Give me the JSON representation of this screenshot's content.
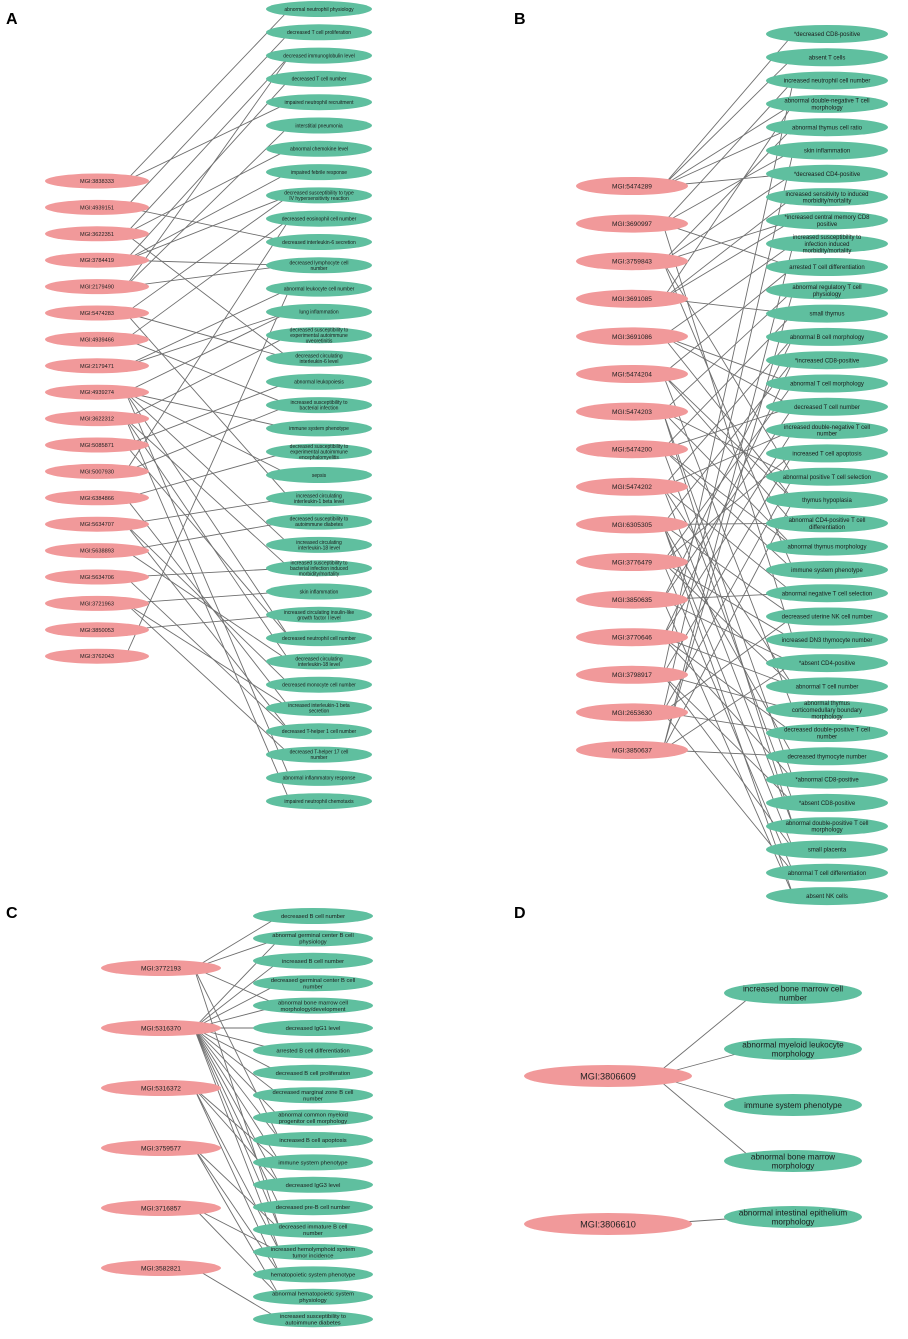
{
  "panels": [
    {
      "letter": "A",
      "genes": [
        "MGI:3838333",
        "MGI:4939151",
        "MGI:3622351",
        "MGI:3784419",
        "MGI:2179490",
        "MGI:5474283",
        "MGI:4939466",
        "MGI:2179471",
        "MGI:4939274",
        "MGI:3622312",
        "MGI:5085871",
        "MGI:5007930",
        "MGI:6384866",
        "MGI:5634707",
        "MGI:5638893",
        "MGI:5634706",
        "MGI:3721963",
        "MGI:3850053",
        "MGI:3762043"
      ],
      "phenotypes": [
        [
          "abnormal neutrophil physiology"
        ],
        [
          "decreased T cell proliferation"
        ],
        [
          "decreased immunoglobulin level"
        ],
        [
          "decreased T cell number"
        ],
        [
          "impaired neutrophil recruitment"
        ],
        [
          "interstitial pneumonia"
        ],
        [
          "abnormal chemokine level"
        ],
        [
          "impaired febrile response"
        ],
        [
          "decreased susceptibility to type",
          "IV hypersensitivity reaction"
        ],
        [
          "decreased eosinophil cell number"
        ],
        [
          "decreased interleukin-6 secretion"
        ],
        [
          "decreased lymphocyte cell",
          "number"
        ],
        [
          "abnormal leukocyte cell number"
        ],
        [
          "lung inflammation"
        ],
        [
          "decreased susceptibility to",
          "experimental autoimmune",
          "uveoretinitis"
        ],
        [
          "decreased circulating",
          "interleukin-6 level"
        ],
        [
          "abnormal leukopoiesis"
        ],
        [
          "increased susceptibility to",
          "bacterial infection"
        ],
        [
          "immune system phenotype"
        ],
        [
          "decreased susceptibility to",
          "experimental autoimmune",
          "encephalomyelitis"
        ],
        [
          "sepsis"
        ],
        [
          "increased circulating",
          "interleukin-1 beta level"
        ],
        [
          "decreased susceptibility to",
          "autoimmune diabetes"
        ],
        [
          "increased circulating",
          "interleukin-18 level"
        ],
        [
          "increased susceptibility to",
          "bacterial infection induced",
          "morbidity/mortality"
        ],
        [
          "skin inflammation"
        ],
        [
          "increased circulating insulin-like",
          "growth factor I level"
        ],
        [
          "decreased neutrophil cell number"
        ],
        [
          "decreased circulating",
          "interleukin-18 level"
        ],
        [
          "decreased monocyte cell number"
        ],
        [
          "increased interleukin-1 beta",
          "secretion"
        ],
        [
          "decreased T-helper 1 cell number"
        ],
        [
          "decreased T-helper 17 cell",
          "number"
        ],
        [
          "abnormal inflammatory response"
        ],
        [
          "impaired neutrophil chemotaxis"
        ]
      ]
    },
    {
      "letter": "B",
      "genes": [
        "MGI:5474289",
        "MGI:3690997",
        "MGI:3759843",
        "MGI:3691085",
        "MGI:3691086",
        "MGI:5474204",
        "MGI:5474203",
        "MGI:5474200",
        "MGI:5474202",
        "MGI:6305305",
        "MGI:3776479",
        "MGI:3850635",
        "MGI:3770646",
        "MGI:3798917",
        "MGI:2653630",
        "MGI:3850637"
      ],
      "phenotypes": [
        [
          "*decreased CD8-positive"
        ],
        [
          "absent T cells"
        ],
        [
          "increased neutrophil cell number"
        ],
        [
          "abnormal double-negative T cell",
          "morphology"
        ],
        [
          "abnormal thymus cell ratio"
        ],
        [
          "skin inflammation"
        ],
        [
          "*decreased CD4-positive"
        ],
        [
          "increased sensitivity to induced",
          "morbidity/mortality"
        ],
        [
          "*increased central memory CD8",
          "positive"
        ],
        [
          "increased susceptibility to",
          "infection induced",
          "morbidity/mortality"
        ],
        [
          "arrested T cell differentiation"
        ],
        [
          "abnormal regulatory T cell",
          "physiology"
        ],
        [
          "small thymus"
        ],
        [
          "abnormal B cell morphology"
        ],
        [
          "*increased CD8-positive"
        ],
        [
          "abnormal T cell morphology"
        ],
        [
          "decreased T cell number"
        ],
        [
          "increased double-negative T cell",
          "number"
        ],
        [
          "increased T cell apoptosis"
        ],
        [
          "abnormal positive T cell selection"
        ],
        [
          "thymus hypoplasia"
        ],
        [
          "abnormal CD4-positive T cell",
          "differentiation"
        ],
        [
          "abnormal thymus morphology"
        ],
        [
          "immune system phenotype"
        ],
        [
          "abnormal negative T cell selection"
        ],
        [
          "decreased uterine NK cell number"
        ],
        [
          "increased DN3 thymocyte number"
        ],
        [
          "*absent CD4-positive"
        ],
        [
          "abnormal T cell number"
        ],
        [
          "abnormal thymus",
          "corticomedullary boundary",
          "morphology"
        ],
        [
          "decreased double-positive T cell",
          "number"
        ],
        [
          "decreased thymocyte number"
        ],
        [
          "*abnormal CD8-positive"
        ],
        [
          "*absent CD8-positive"
        ],
        [
          "abnormal double-positive T cell",
          "morphology"
        ],
        [
          "small placenta"
        ],
        [
          "abnormal T cell differentiation"
        ],
        [
          "absent NK cells"
        ]
      ]
    },
    {
      "letter": "C",
      "genes": [
        "MGI:3772193",
        "MGI:5316370",
        "MGI:5316372",
        "MGI:3759577",
        "MGI:3716857",
        "MGI:3582821"
      ],
      "phenotypes": [
        [
          "decreased B cell number"
        ],
        [
          "abnormal germinal center B cell",
          "physiology"
        ],
        [
          "increased B cell number"
        ],
        [
          "decreased germinal center B cell",
          "number"
        ],
        [
          "abnormal bone marrow cell",
          "morphology/development"
        ],
        [
          "decreased IgG1 level"
        ],
        [
          "arrested B cell differentiation"
        ],
        [
          "decreased B cell proliferation"
        ],
        [
          "decreased marginal zone B cell",
          "number"
        ],
        [
          "abnormal common myeloid",
          "progenitor cell morphology"
        ],
        [
          "increased B cell apoptosis"
        ],
        [
          "immune system phenotype"
        ],
        [
          "decreased IgG3 level"
        ],
        [
          "decreased pre-B cell number"
        ],
        [
          "decreased immature B cell",
          "number"
        ],
        [
          "increased hemolymphoid system",
          "tumor incidence"
        ],
        [
          "hematopoietic system phenotype"
        ],
        [
          "abnormal hematopoietic system",
          "physiology"
        ],
        [
          "increased susceptibility to",
          "autoimmune diabetes"
        ]
      ]
    },
    {
      "letter": "D",
      "genes": [
        "MGI:3806609",
        "MGI:3806610"
      ],
      "phenotypes": [
        [
          "increased bone marrow cell",
          "number"
        ],
        [
          "abnormal myeloid leukocyte",
          "morphology"
        ],
        [
          "immune system phenotype"
        ],
        [
          "abnormal bone marrow",
          "morphology"
        ],
        [
          "abnormal intestinal epithelium",
          "morphology"
        ]
      ]
    }
  ]
}
